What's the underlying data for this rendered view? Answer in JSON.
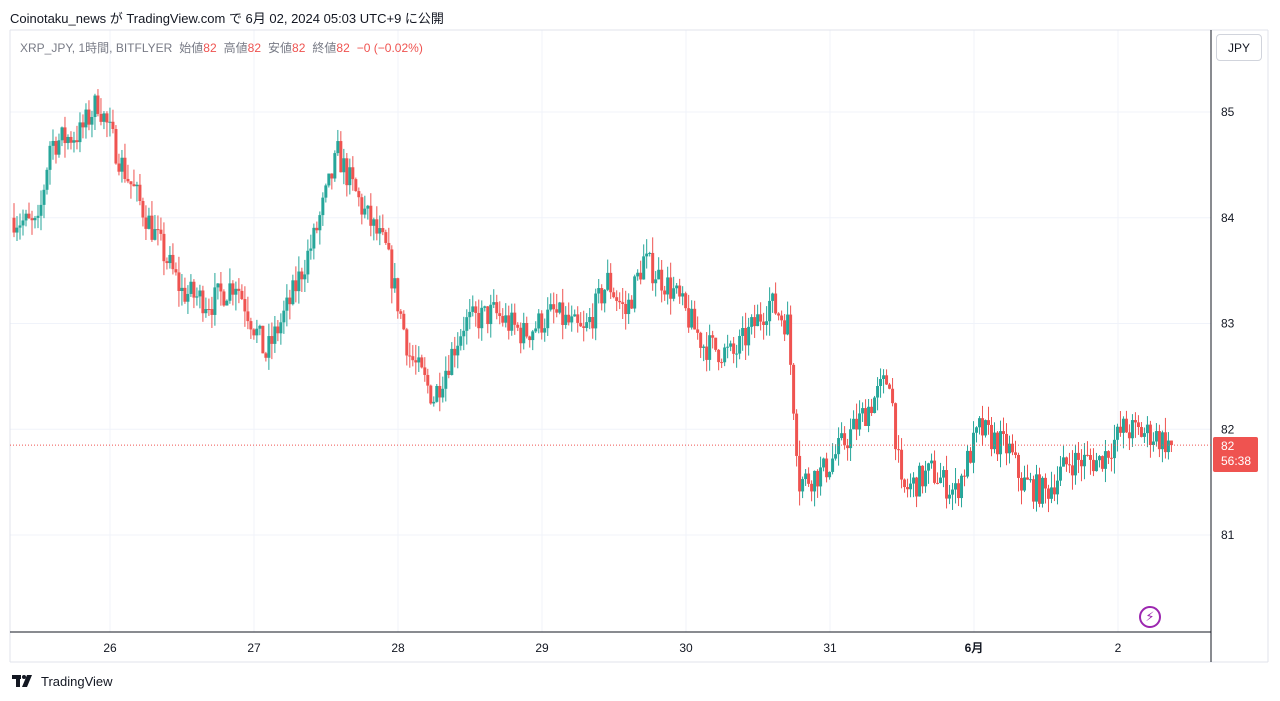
{
  "header": {
    "publisher": "Coinotaku_news",
    "text": "Coinotaku_news が TradingView.com で 6月 02, 2024 05:03 UTC+9 に公開"
  },
  "legend": {
    "symbol": "XRP_JPY, 1時間, BITFLYER",
    "open_label": "始値",
    "open_value": "82",
    "high_label": "高値",
    "high_value": "82",
    "low_label": "安値",
    "low_value": "82",
    "close_label": "終値",
    "close_value": "82",
    "change": "−0 (−0.02%)"
  },
  "currency_button": "JPY",
  "price_label": {
    "price": "82",
    "countdown": "56:38"
  },
  "footer": {
    "brand": "TradingView"
  },
  "colors": {
    "up": "#26a69a",
    "down": "#ef5350",
    "grid": "#f0f3fa",
    "axis_text": "#131722"
  },
  "chart_data": {
    "type": "candlestick",
    "timeframe": "1時間",
    "exchange": "BITFLYER",
    "x_tick_labels": [
      "26",
      "27",
      "28",
      "29",
      "30",
      "31",
      "6月",
      "2"
    ],
    "y_tick_labels": [
      "81",
      "82",
      "83",
      "84",
      "85"
    ],
    "ylim": [
      80.1,
      85.6
    ],
    "last_price": 81.85,
    "grid": true,
    "anchors": [
      {
        "t": 0,
        "p": 84.0
      },
      {
        "t": 8,
        "p": 83.9
      },
      {
        "t": 12,
        "p": 84.7
      },
      {
        "t": 22,
        "p": 84.8
      },
      {
        "t": 28,
        "p": 85.1
      },
      {
        "t": 36,
        "p": 84.5
      },
      {
        "t": 46,
        "p": 83.9
      },
      {
        "t": 56,
        "p": 83.3
      },
      {
        "t": 66,
        "p": 83.2
      },
      {
        "t": 74,
        "p": 83.4
      },
      {
        "t": 84,
        "p": 82.7
      },
      {
        "t": 92,
        "p": 83.2
      },
      {
        "t": 100,
        "p": 83.8
      },
      {
        "t": 108,
        "p": 84.6
      },
      {
        "t": 116,
        "p": 84.1
      },
      {
        "t": 124,
        "p": 83.7
      },
      {
        "t": 132,
        "p": 82.7
      },
      {
        "t": 140,
        "p": 82.3
      },
      {
        "t": 150,
        "p": 83.0
      },
      {
        "t": 160,
        "p": 83.1
      },
      {
        "t": 170,
        "p": 82.9
      },
      {
        "t": 180,
        "p": 83.1
      },
      {
        "t": 190,
        "p": 82.9
      },
      {
        "t": 198,
        "p": 83.4
      },
      {
        "t": 204,
        "p": 83.1
      },
      {
        "t": 210,
        "p": 83.6
      },
      {
        "t": 220,
        "p": 83.3
      },
      {
        "t": 230,
        "p": 82.8
      },
      {
        "t": 240,
        "p": 82.7
      },
      {
        "t": 252,
        "p": 83.2
      },
      {
        "t": 258,
        "p": 83.0
      },
      {
        "t": 262,
        "p": 81.5
      },
      {
        "t": 270,
        "p": 81.6
      },
      {
        "t": 280,
        "p": 82.0
      },
      {
        "t": 292,
        "p": 82.5
      },
      {
        "t": 296,
        "p": 81.4
      },
      {
        "t": 306,
        "p": 81.6
      },
      {
        "t": 314,
        "p": 81.4
      },
      {
        "t": 322,
        "p": 82.0
      },
      {
        "t": 332,
        "p": 81.8
      },
      {
        "t": 336,
        "p": 81.5
      },
      {
        "t": 344,
        "p": 81.4
      },
      {
        "t": 352,
        "p": 81.7
      },
      {
        "t": 362,
        "p": 81.7
      },
      {
        "t": 370,
        "p": 82.0
      },
      {
        "t": 380,
        "p": 81.95
      },
      {
        "t": 386,
        "p": 81.85
      }
    ],
    "ohlc_note": "Hourly candles approximated along the anchor path"
  }
}
